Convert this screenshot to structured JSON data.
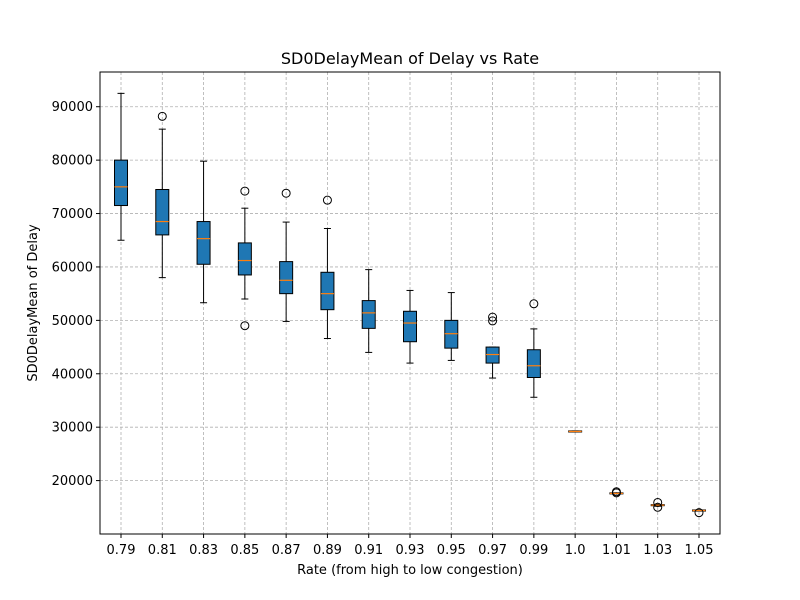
{
  "chart_data": {
    "type": "box",
    "title": "SD0DelayMean of Delay vs Rate",
    "xlabel": "Rate (from high to low congestion)",
    "ylabel": "SD0DelayMean of Delay",
    "categories": [
      "0.79",
      "0.81",
      "0.83",
      "0.85",
      "0.87",
      "0.89",
      "0.91",
      "0.93",
      "0.95",
      "0.97",
      "0.99",
      "1.0",
      "1.01",
      "1.03",
      "1.05"
    ],
    "yticks": [
      20000,
      30000,
      40000,
      50000,
      60000,
      70000,
      80000,
      90000
    ],
    "ytick_labels": [
      "20000",
      "30000",
      "40000",
      "50000",
      "60000",
      "70000",
      "80000",
      "90000"
    ],
    "ylim": [
      10000,
      96500
    ],
    "grid": true,
    "box_color": "#1f77b4",
    "median_color": "#ff7f0e",
    "boxes": [
      {
        "whislo": 65000,
        "q1": 71500,
        "med": 75000,
        "q3": 80000,
        "whishi": 92500,
        "fliers": []
      },
      {
        "whislo": 58000,
        "q1": 66000,
        "med": 68500,
        "q3": 74500,
        "whishi": 85800,
        "fliers": [
          88200
        ]
      },
      {
        "whislo": 53300,
        "q1": 60500,
        "med": 65300,
        "q3": 68500,
        "whishi": 79800,
        "fliers": []
      },
      {
        "whislo": 54000,
        "q1": 58500,
        "med": 61200,
        "q3": 64500,
        "whishi": 71000,
        "fliers": [
          49000,
          74200
        ]
      },
      {
        "whislo": 49800,
        "q1": 55000,
        "med": 57500,
        "q3": 61000,
        "whishi": 68400,
        "fliers": [
          73800
        ]
      },
      {
        "whislo": 46600,
        "q1": 52000,
        "med": 55000,
        "q3": 59000,
        "whishi": 67200,
        "fliers": [
          72500
        ]
      },
      {
        "whislo": 44000,
        "q1": 48500,
        "med": 51400,
        "q3": 53700,
        "whishi": 59500,
        "fliers": []
      },
      {
        "whislo": 42000,
        "q1": 46000,
        "med": 49500,
        "q3": 51700,
        "whishi": 55600,
        "fliers": []
      },
      {
        "whislo": 42500,
        "q1": 44800,
        "med": 47500,
        "q3": 50000,
        "whishi": 55200,
        "fliers": []
      },
      {
        "whislo": 39200,
        "q1": 42000,
        "med": 43600,
        "q3": 45000,
        "whishi": 45000,
        "fliers": [
          49900,
          50600
        ]
      },
      {
        "whislo": 35600,
        "q1": 39300,
        "med": 41500,
        "q3": 44500,
        "whishi": 48400,
        "fliers": [
          53100
        ]
      },
      {
        "whislo": 29100,
        "q1": 29100,
        "med": 29200,
        "q3": 29300,
        "whishi": 29300,
        "fliers": []
      },
      {
        "whislo": 17600,
        "q1": 17600,
        "med": 17600,
        "q3": 17700,
        "whishi": 17700,
        "fliers": [
          17900,
          17700
        ]
      },
      {
        "whislo": 15200,
        "q1": 15300,
        "med": 15400,
        "q3": 15500,
        "whishi": 15500,
        "fliers": [
          15900,
          15000
        ]
      },
      {
        "whislo": 14300,
        "q1": 14300,
        "med": 14400,
        "q3": 14500,
        "whishi": 14500,
        "fliers": [
          14000
        ]
      }
    ]
  }
}
